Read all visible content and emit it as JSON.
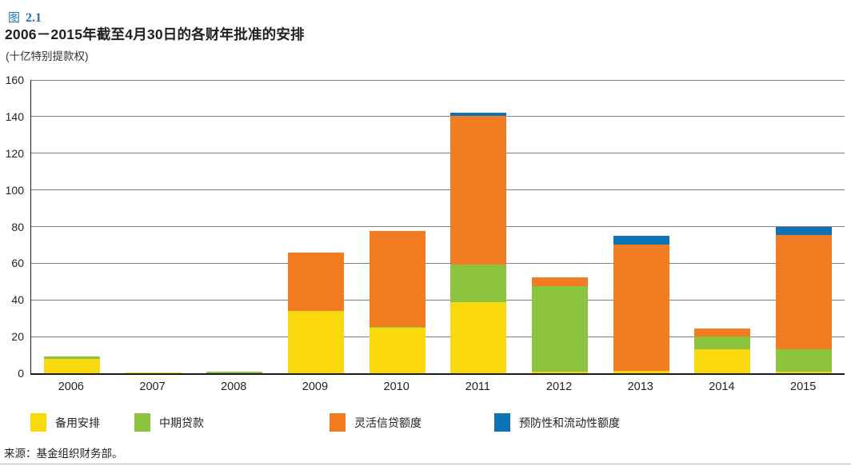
{
  "figure": {
    "label": "图",
    "number": "2.1",
    "title": "2006－2015年截至4月30日的各财年批准的安排",
    "subtitle": "(十亿特别提款权)",
    "source": "来源：基金组织财务部。"
  },
  "colors": {
    "figure_label_blue": "#2273b6",
    "sba_yellow": "#f9d90d",
    "eff_green": "#8cc440",
    "fcl_orange": "#f17c22",
    "pll_blue": "#0f72b4",
    "gridline_gray": "#7f7f7f",
    "axis_black": "#1a1a1a"
  },
  "chart_data": {
    "type": "bar",
    "stacked": true,
    "title": "2006－2015年截至4月30日的各财年批准的安排",
    "ylabel": "十亿特别提款权",
    "categories": [
      "2006",
      "2007",
      "2008",
      "2009",
      "2010",
      "2011",
      "2012",
      "2013",
      "2014",
      "2015"
    ],
    "series": [
      {
        "name": "备用安排",
        "color_key": "sba_yellow",
        "values": [
          8,
          0.5,
          0,
          34,
          25,
          39,
          1,
          1.3,
          13.3,
          1
        ]
      },
      {
        "name": "中期贷款",
        "color_key": "eff_green",
        "values": [
          1,
          0,
          1,
          0,
          0.3,
          20.5,
          46.7,
          0,
          6.7,
          12.2
        ]
      },
      {
        "name": "灵活信贷额度",
        "color_key": "fcl_orange",
        "values": [
          0,
          0,
          0,
          32,
          52.2,
          81,
          4.8,
          69.1,
          4.6,
          62.2
        ]
      },
      {
        "name": "预防性和流动性额度",
        "color_key": "pll_blue",
        "values": [
          0,
          0,
          0,
          0,
          0,
          1.5,
          0,
          4.6,
          0,
          4.4
        ]
      }
    ],
    "totals": [
      9,
      0.5,
      1,
      66,
      77.5,
      142,
      52.5,
      75,
      24.6,
      79.8
    ],
    "ylim": [
      0,
      160
    ],
    "ytick_step": 20,
    "yticks": [
      0,
      20,
      40,
      60,
      80,
      100,
      120,
      140,
      160
    ],
    "grid": true,
    "legend_position": "bottom"
  }
}
